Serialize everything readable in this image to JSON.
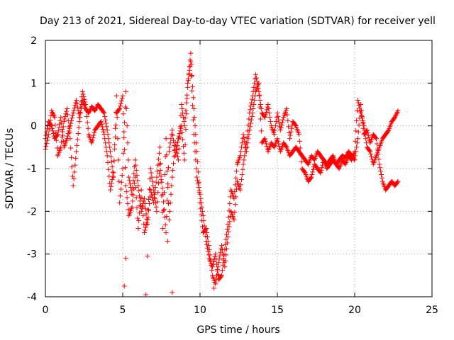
{
  "chart_data": {
    "type": "scatter",
    "title": "Day 213 of 2021, Sidereal Day-to-day VTEC variation (SDTVAR) for receiver yell",
    "xlabel": "GPS time / hours",
    "ylabel": "SDTVAR / TECUs",
    "xlim": [
      0,
      25
    ],
    "ylim": [
      -4,
      2
    ],
    "xticks": [
      0,
      5,
      10,
      15,
      20,
      25
    ],
    "yticks": [
      -4,
      -3,
      -2,
      -1,
      0,
      1,
      2
    ],
    "grid": true,
    "marker": "+",
    "series": [
      {
        "name": "SDTVAR",
        "color": "#ff0000",
        "trace_a": {
          "x": [
            0.0,
            0.2,
            0.4,
            0.6,
            0.8,
            1.0,
            1.2,
            1.4,
            1.6,
            1.8,
            2.0,
            2.2,
            2.4,
            2.6,
            2.8,
            3.0,
            3.2,
            3.4,
            3.6,
            3.8,
            4.0,
            4.2,
            4.4,
            4.6,
            4.8,
            5.0,
            5.2,
            5.4,
            5.6,
            5.8,
            6.0,
            6.2,
            6.4,
            6.6,
            6.8,
            7.0,
            7.2,
            7.4,
            7.6,
            7.8,
            8.0,
            8.2,
            8.4,
            8.6,
            8.8,
            9.0,
            9.2,
            9.4,
            9.6,
            9.8,
            10.0,
            10.2,
            10.4,
            10.6,
            10.8,
            11.0,
            11.2,
            11.4,
            11.6,
            11.8,
            12.0,
            12.2,
            12.4,
            12.6,
            12.8,
            13.0,
            13.2,
            13.4,
            13.6,
            13.8,
            14.0,
            14.2,
            14.4,
            14.6,
            14.8,
            15.0,
            15.2,
            15.4,
            15.6,
            15.8,
            16.0,
            16.2,
            16.4,
            16.6,
            16.8,
            17.0,
            17.2,
            17.4,
            17.6,
            17.8,
            18.0,
            18.2,
            18.4,
            18.6,
            18.8,
            19.0,
            19.2,
            19.4,
            19.6,
            19.8,
            20.0,
            20.2,
            20.4,
            20.6,
            20.8,
            21.0,
            21.2,
            21.4,
            21.6,
            21.8,
            22.0,
            22.2,
            22.4,
            22.6,
            22.8
          ],
          "y": [
            -0.55,
            -0.2,
            0.35,
            0.2,
            -0.7,
            -0.5,
            0.1,
            0.4,
            -0.3,
            -1.4,
            -0.6,
            0.1,
            0.6,
            0.4,
            0.3,
            0.45,
            0.35,
            0.5,
            0.4,
            0.3,
            -0.1,
            -0.6,
            -1.2,
            0.7,
            -1.8,
            -1.0,
            0.8,
            -1.2,
            -1.6,
            -0.8,
            -1.4,
            -2.0,
            -1.7,
            -2.3,
            -1.5,
            -1.8,
            -1.2,
            -0.5,
            -2.4,
            -0.3,
            -2.2,
            -1.2,
            -0.4,
            -0.8,
            0.5,
            0.0,
            0.9,
            1.7,
            0.4,
            -0.6,
            -1.8,
            -2.5,
            -2.4,
            -2.9,
            -3.5,
            -3.7,
            -3.2,
            -2.8,
            -3.3,
            -2.6,
            -2.0,
            -2.2,
            -1.3,
            -1.5,
            -0.9,
            -0.4,
            0.3,
            0.7,
            1.2,
            0.8,
            0.3,
            0.2,
            0.5,
            0.0,
            -0.2,
            0.3,
            -0.1,
            0.2,
            0.4,
            -0.3,
            0.1,
            0.0,
            -0.2,
            -1.0,
            -1.1,
            -1.3,
            -1.2,
            -0.9,
            -1.0,
            -1.1,
            -0.8,
            -0.9,
            -0.8,
            -0.7,
            -0.9,
            -0.8,
            -0.7,
            -0.75,
            -0.6,
            -0.7,
            -0.8,
            -0.3,
            0.5,
            -0.2,
            -0.1,
            -0.4,
            -0.2,
            -0.3,
            -0.9,
            -1.3,
            -1.5,
            -1.4,
            -1.3,
            -1.4,
            -1.3
          ]
        },
        "trace_b": {
          "x": [
            0.0,
            0.2,
            0.4,
            0.6,
            0.8,
            1.0,
            1.2,
            1.4,
            1.6,
            1.8,
            2.0,
            2.2,
            2.4,
            2.6,
            2.8,
            3.0,
            3.2,
            3.4,
            3.6,
            3.8,
            4.0,
            4.2,
            4.4,
            4.6,
            4.8,
            5.0,
            5.2,
            5.4,
            5.6,
            5.8,
            6.0,
            6.2,
            6.4,
            6.6,
            6.8,
            7.0,
            7.2,
            7.4,
            7.6,
            7.8,
            8.0,
            8.2,
            8.4,
            8.6,
            8.8,
            9.0,
            9.2,
            9.4,
            9.6,
            9.8,
            10.0,
            10.2,
            10.4,
            10.6,
            10.8,
            11.0,
            11.2,
            11.4,
            11.6,
            11.8,
            12.0,
            12.2,
            12.4,
            12.6,
            12.8,
            13.0,
            13.2,
            13.4,
            13.6,
            13.8,
            14.0,
            14.2,
            14.4,
            14.6,
            14.8,
            15.0,
            15.2,
            15.4,
            15.6,
            15.8,
            16.0,
            16.2,
            16.4,
            16.6,
            16.8,
            17.0,
            17.2,
            17.4,
            17.6,
            17.8,
            18.0,
            18.2,
            18.4,
            18.6,
            18.8,
            19.0,
            19.2,
            19.4,
            19.6,
            19.8,
            20.0,
            20.2,
            20.4,
            20.6,
            20.8,
            21.0,
            21.2,
            21.4,
            21.6,
            21.8,
            22.0,
            22.2,
            22.4,
            22.6,
            22.8
          ],
          "y": [
            -0.3,
            0.1,
            0.0,
            -0.3,
            -0.2,
            0.2,
            -0.5,
            -0.3,
            0.0,
            0.3,
            0.6,
            0.2,
            0.8,
            0.5,
            -0.2,
            -0.4,
            -0.1,
            0.0,
            0.1,
            -0.2,
            -0.7,
            -1.5,
            -1.1,
            0.3,
            0.4,
            0.7,
            -1.4,
            -2.1,
            -1.9,
            -1.2,
            -2.4,
            -1.5,
            -2.5,
            -2.2,
            -1.0,
            -1.5,
            -2.0,
            -0.9,
            -1.6,
            -2.5,
            -0.6,
            -0.1,
            -0.7,
            -0.3,
            0.0,
            -0.8,
            1.0,
            1.5,
            -0.2,
            -1.2,
            -1.6,
            -2.1,
            -2.7,
            -3.1,
            -3.3,
            -3.0,
            -3.6,
            -3.5,
            -2.9,
            -2.3,
            -1.5,
            -1.7,
            -0.9,
            -0.7,
            -0.2,
            -0.6,
            -0.1,
            0.3,
            0.8,
            1.0,
            -0.4,
            -0.3,
            -0.6,
            -0.4,
            -0.5,
            -0.3,
            -0.6,
            -0.4,
            -0.5,
            -0.7,
            -0.6,
            -0.5,
            -0.6,
            -0.7,
            -0.8,
            -0.9,
            -0.7,
            -0.8,
            -0.6,
            -0.7,
            -0.8,
            -1.0,
            -0.9,
            -0.8,
            -0.9,
            -1.0,
            -0.8,
            -0.9,
            -0.7,
            -0.8,
            -0.6,
            0.6,
            0.3,
            0.0,
            -0.5,
            -0.6,
            -0.9,
            -0.7,
            -0.5,
            -0.3,
            -0.2,
            -0.1,
            0.1,
            0.2,
            0.35
          ]
        },
        "outliers": {
          "x": [
            5.1,
            5.2,
            6.5,
            6.6,
            8.2,
            7.9,
            10.9,
            11.2
          ],
          "y": [
            -3.75,
            -3.1,
            -3.95,
            -3.05,
            -3.9,
            -2.7,
            -3.8,
            -3.5
          ]
        }
      }
    ]
  }
}
